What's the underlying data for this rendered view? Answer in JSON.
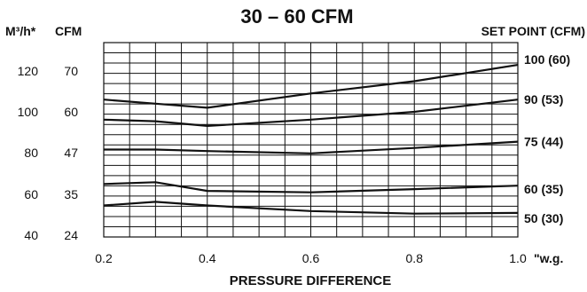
{
  "chart_data": {
    "type": "line",
    "title": "30 – 60 CFM",
    "xlabel": "PRESSURE DIFFERENCE",
    "x_unit": "\"w.g.",
    "y_left_outer_unit": "M³/h*",
    "y_left_inner_unit": "CFM",
    "right_header": "SET POINT (CFM)",
    "x_ticks": [
      "0.2",
      "0.4",
      "0.6",
      "0.8",
      "1.0"
    ],
    "x_tick_values": [
      0.2,
      0.4,
      0.6,
      0.8,
      1.0
    ],
    "y_ticks_cfm": [
      "70",
      "60",
      "47",
      "35",
      "24"
    ],
    "y_ticks_cfm_values": [
      70,
      60,
      47,
      35,
      24
    ],
    "y_ticks_m3h": [
      "120",
      "100",
      "80",
      "60",
      "40"
    ],
    "xlim": [
      0.2,
      1.0
    ],
    "grid": true,
    "series": [
      {
        "name": "100 (60)",
        "x": [
          0.2,
          0.3,
          0.4,
          0.6,
          0.8,
          1.0
        ],
        "y": [
          63.0,
          62.0,
          61.0,
          64.5,
          67.5,
          71.5
        ]
      },
      {
        "name": "90 (53)",
        "x": [
          0.2,
          0.3,
          0.4,
          0.6,
          0.8,
          1.0
        ],
        "y": [
          57.5,
          57.0,
          55.5,
          57.5,
          60.0,
          63.0
        ]
      },
      {
        "name": "75 (44)",
        "x": [
          0.2,
          0.3,
          0.4,
          0.6,
          0.8,
          1.0
        ],
        "y": [
          48.0,
          48.0,
          47.5,
          46.8,
          48.5,
          50.5
        ]
      },
      {
        "name": "60 (35)",
        "x": [
          0.2,
          0.3,
          0.4,
          0.6,
          0.8,
          1.0
        ],
        "y": [
          38.0,
          38.5,
          36.0,
          35.6,
          36.5,
          37.5
        ]
      },
      {
        "name": "50 (30)",
        "x": [
          0.2,
          0.3,
          0.4,
          0.6,
          0.8,
          1.0
        ],
        "y": [
          32.0,
          33.0,
          32.0,
          30.5,
          29.8,
          30.0
        ]
      }
    ]
  }
}
